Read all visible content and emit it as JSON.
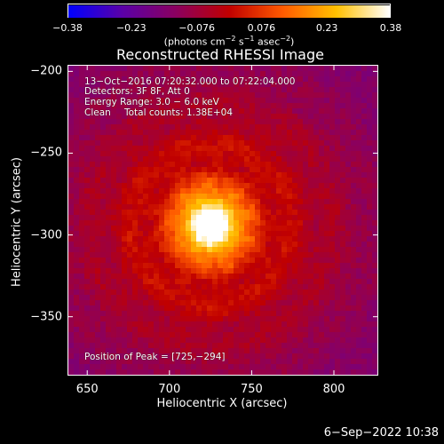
{
  "colors": {
    "background": "#000000",
    "foreground": "#ffffff",
    "colormap": [
      "#0000ff",
      "#5a00a8",
      "#8a0060",
      "#c00000",
      "#ff5a00",
      "#ffc000",
      "#ffffff"
    ]
  },
  "colorbar": {
    "tick_labels": [
      "−0.38",
      "−0.23",
      "−0.076",
      "0.076",
      "0.23",
      "0.38"
    ],
    "tick_values": [
      -0.38,
      -0.23,
      -0.076,
      0.076,
      0.23,
      0.38
    ],
    "range": [
      -0.38,
      0.38
    ],
    "units_prefix": "(photons cm",
    "units_exp1": "−2",
    "units_mid1": " s",
    "units_exp2": "−1",
    "units_mid2": " asec",
    "units_exp3": "−2",
    "units_suffix": ")"
  },
  "title": "Reconstructed RHESSI Image",
  "annotations": {
    "time_range": "13−Oct−2016 07:20:32.000 to 07:22:04.000",
    "detectors": "Detectors: 3F 8F, Att 0",
    "energy_range": "Energy Range: 3.0 − 6.0 keV",
    "algorithm": "Clean",
    "total_counts": "Total counts: 1.38E+04",
    "peak_position": "Position of Peak = [725,−294]"
  },
  "axes": {
    "xlabel": "Heliocentric X (arcsec)",
    "ylabel": "Heliocentric Y (arcsec)",
    "xlim": [
      638,
      827
    ],
    "ylim": [
      -386,
      -196
    ],
    "x_tick_values": [
      650,
      700,
      750,
      800
    ],
    "x_tick_labels": [
      "650",
      "700",
      "750",
      "800"
    ],
    "y_tick_values": [
      -200,
      -250,
      -300,
      -350
    ],
    "y_tick_labels": [
      "−200",
      "−250",
      "−300",
      "−350"
    ]
  },
  "image": {
    "peak_x": 725,
    "peak_y": -294
  },
  "footer": {
    "datestamp": "6−Sep−2022 10:38"
  }
}
